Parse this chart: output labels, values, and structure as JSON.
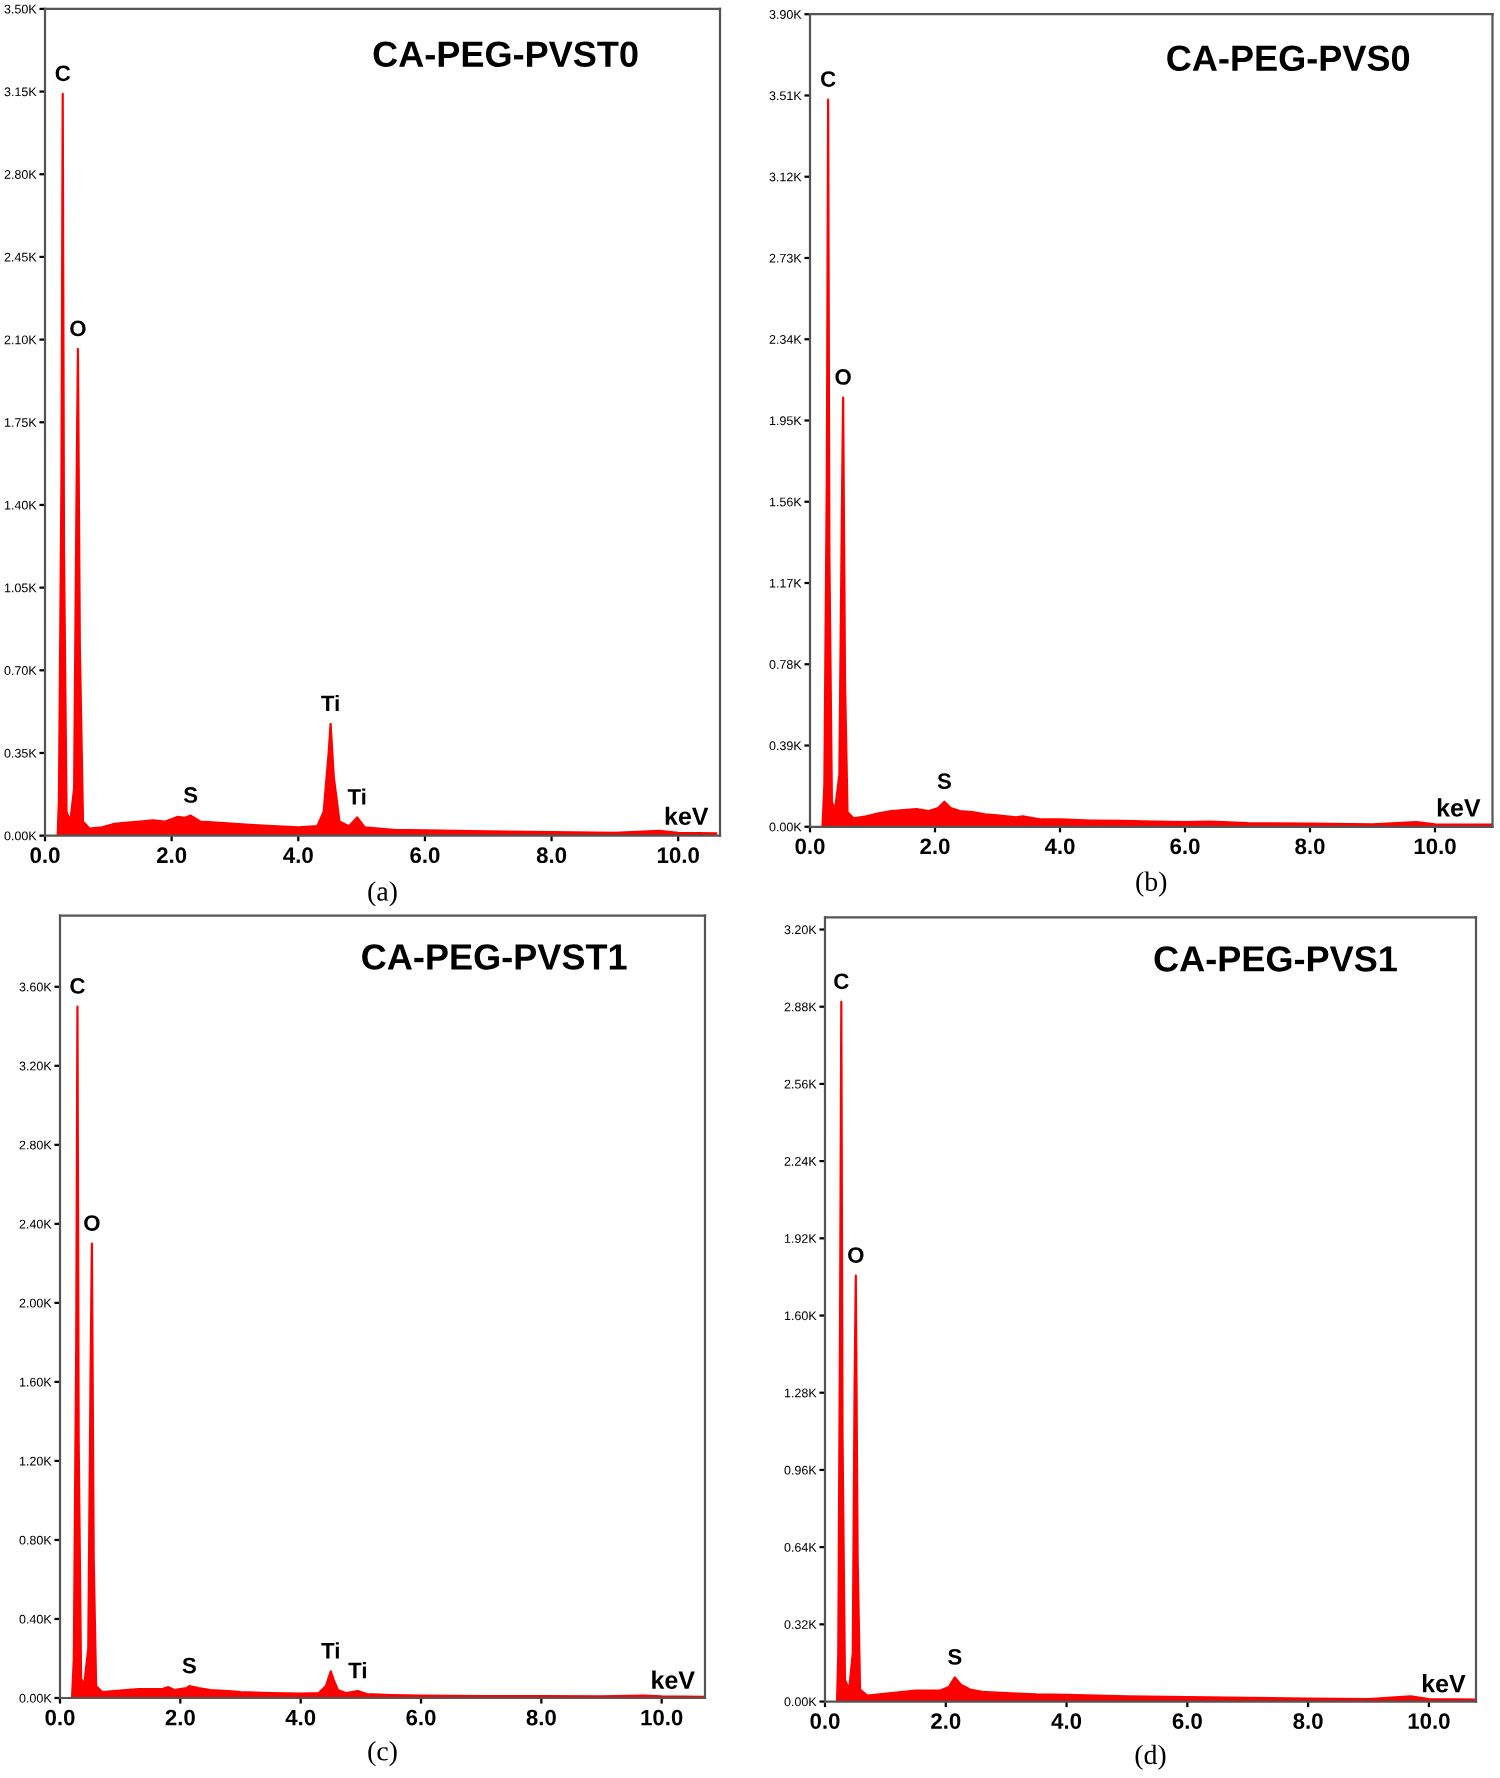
{
  "chart_data": [
    {
      "type": "area",
      "title": "CA-PEG-PVST0",
      "xlabel": "keV",
      "xlim": [
        0,
        10.66
      ],
      "ylim": [
        0,
        3500
      ],
      "xticks": [
        {
          "value": 0,
          "label": "0.0"
        },
        {
          "value": 2,
          "label": "2.0"
        },
        {
          "value": 4,
          "label": "4.0"
        },
        {
          "value": 6,
          "label": "6.0"
        },
        {
          "value": 8,
          "label": "8.0"
        },
        {
          "value": 10,
          "label": "10.0"
        }
      ],
      "yticks": [
        {
          "value": 0,
          "label": "0.00K"
        },
        {
          "value": 350,
          "label": "0.35K"
        },
        {
          "value": 700,
          "label": "0.70K"
        },
        {
          "value": 1050,
          "label": "1.05K"
        },
        {
          "value": 1400,
          "label": "1.40K"
        },
        {
          "value": 1750,
          "label": "1.75K"
        },
        {
          "value": 2100,
          "label": "2.10K"
        },
        {
          "value": 2450,
          "label": "2.45K"
        },
        {
          "value": 2800,
          "label": "2.80K"
        },
        {
          "value": 3150,
          "label": "3.15K"
        },
        {
          "value": 3500,
          "label": "3.50K"
        }
      ],
      "series": [
        {
          "color": "#ff0000",
          "x": [
            0.2,
            0.22,
            0.26,
            0.28,
            0.3,
            0.34,
            0.4,
            0.46,
            0.5,
            0.52,
            0.55,
            0.6,
            0.7,
            0.9,
            1.1,
            1.3,
            1.5,
            1.7,
            1.9,
            2.1,
            2.2,
            2.3,
            2.45,
            2.7,
            3.0,
            3.3,
            3.6,
            4.0,
            4.3,
            4.4,
            4.48,
            4.51,
            4.56,
            4.65,
            4.8,
            4.93,
            5.05,
            5.5,
            6.0,
            6.5,
            7.0,
            8.0,
            9.0,
            9.7,
            10.0,
            10.6
          ],
          "values": [
            0,
            150,
            1500,
            3140,
            1200,
            100,
            60,
            200,
            1500,
            2060,
            800,
            60,
            30,
            35,
            50,
            55,
            60,
            65,
            60,
            80,
            75,
            85,
            60,
            55,
            50,
            45,
            40,
            35,
            40,
            100,
            350,
            473,
            250,
            60,
            40,
            77,
            35,
            25,
            22,
            20,
            18,
            15,
            12,
            20,
            12,
            10
          ]
        }
      ],
      "annotations": [
        {
          "text": "C",
          "x": 0.28,
          "y": 3140
        },
        {
          "text": "O",
          "x": 0.52,
          "y": 2060
        },
        {
          "text": "S",
          "x": 2.3,
          "y": 85
        },
        {
          "text": "Ti",
          "x": 4.51,
          "y": 473
        },
        {
          "text": "Ti",
          "x": 4.93,
          "y": 77
        },
        "(a)"
      ]
    },
    {
      "type": "area",
      "title": "CA-PEG-PVS0",
      "xlabel": "keV",
      "xlim": [
        0,
        10.92
      ],
      "ylim": [
        0,
        3900
      ],
      "xticks": [
        {
          "value": 0,
          "label": "0.0"
        },
        {
          "value": 2,
          "label": "2.0"
        },
        {
          "value": 4,
          "label": "4.0"
        },
        {
          "value": 6,
          "label": "6.0"
        },
        {
          "value": 8,
          "label": "8.0"
        },
        {
          "value": 10,
          "label": "10.0"
        }
      ],
      "yticks": [
        {
          "value": 0,
          "label": "0.00K"
        },
        {
          "value": 390,
          "label": "0.39K"
        },
        {
          "value": 780,
          "label": "0.78K"
        },
        {
          "value": 1170,
          "label": "1.17K"
        },
        {
          "value": 1560,
          "label": "1.56K"
        },
        {
          "value": 1950,
          "label": "1.95K"
        },
        {
          "value": 2340,
          "label": "2.34K"
        },
        {
          "value": 2730,
          "label": "2.73K"
        },
        {
          "value": 3120,
          "label": "3.12K"
        },
        {
          "value": 3510,
          "label": "3.51K"
        },
        {
          "value": 3900,
          "label": "3.90K"
        }
      ],
      "series": [
        {
          "color": "#ff0000",
          "x": [
            0.2,
            0.23,
            0.27,
            0.29,
            0.31,
            0.35,
            0.4,
            0.47,
            0.51,
            0.53,
            0.56,
            0.6,
            0.7,
            0.9,
            1.1,
            1.3,
            1.5,
            1.7,
            1.9,
            2.05,
            2.15,
            2.25,
            2.4,
            2.6,
            2.8,
            3.0,
            3.3,
            3.4,
            3.7,
            4.0,
            4.5,
            5.0,
            5.5,
            6.0,
            6.4,
            7.0,
            8.0,
            9.0,
            9.7,
            10.0,
            10.9
          ],
          "values": [
            0,
            200,
            1700,
            3490,
            1300,
            120,
            80,
            250,
            1500,
            2060,
            700,
            70,
            40,
            50,
            65,
            75,
            80,
            85,
            75,
            90,
            120,
            90,
            75,
            70,
            60,
            55,
            45,
            50,
            35,
            35,
            30,
            28,
            25,
            22,
            25,
            18,
            15,
            12,
            22,
            12,
            10
          ]
        }
      ],
      "annotations": [
        {
          "text": "C",
          "x": 0.29,
          "y": 3490
        },
        {
          "text": "O",
          "x": 0.53,
          "y": 2060
        },
        {
          "text": "S",
          "x": 2.15,
          "y": 120
        },
        "(b)"
      ]
    },
    {
      "type": "area",
      "title": "CA-PEG-PVST1",
      "xlabel": "keV",
      "xlim": [
        0,
        10.72
      ],
      "ylim": [
        0,
        3960
      ],
      "xticks": [
        {
          "value": 0,
          "label": "0.0"
        },
        {
          "value": 2,
          "label": "2.0"
        },
        {
          "value": 4,
          "label": "4.0"
        },
        {
          "value": 6,
          "label": "6.0"
        },
        {
          "value": 8,
          "label": "8.0"
        },
        {
          "value": 10,
          "label": "10.0"
        }
      ],
      "yticks": [
        {
          "value": 0,
          "label": "0.00K"
        },
        {
          "value": 400,
          "label": "0.40K"
        },
        {
          "value": 800,
          "label": "0.80K"
        },
        {
          "value": 1200,
          "label": "1.20K"
        },
        {
          "value": 1600,
          "label": "1.60K"
        },
        {
          "value": 2000,
          "label": "2.00K"
        },
        {
          "value": 2400,
          "label": "2.40K"
        },
        {
          "value": 2800,
          "label": "2.80K"
        },
        {
          "value": 3200,
          "label": "3.20K"
        },
        {
          "value": 3600,
          "label": "3.60K"
        }
      ],
      "series": [
        {
          "color": "#ff0000",
          "x": [
            0.2,
            0.23,
            0.27,
            0.29,
            0.31,
            0.35,
            0.4,
            0.47,
            0.51,
            0.53,
            0.56,
            0.6,
            0.7,
            0.9,
            1.1,
            1.3,
            1.5,
            1.7,
            1.8,
            1.9,
            2.1,
            2.15,
            2.3,
            2.5,
            2.8,
            3.0,
            3.5,
            4.0,
            4.3,
            4.42,
            4.5,
            4.55,
            4.62,
            4.75,
            4.95,
            5.1,
            5.5,
            6.0,
            7.0,
            8.0,
            9.0,
            9.7,
            10.0,
            10.7
          ],
          "values": [
            0,
            200,
            1800,
            3500,
            1300,
            100,
            60,
            250,
            1700,
            2300,
            700,
            60,
            30,
            35,
            40,
            45,
            45,
            45,
            55,
            40,
            50,
            60,
            50,
            40,
            35,
            30,
            25,
            22,
            25,
            60,
            135,
            90,
            40,
            25,
            35,
            20,
            15,
            12,
            10,
            10,
            8,
            12,
            8,
            6
          ]
        }
      ],
      "annotations": [
        {
          "text": "C",
          "x": 0.29,
          "y": 3500
        },
        {
          "text": "O",
          "x": 0.53,
          "y": 2300
        },
        {
          "text": "S",
          "x": 2.15,
          "y": 60
        },
        {
          "text": "Ti",
          "x": 4.5,
          "y": 135
        },
        {
          "text": "Ti",
          "x": 4.95,
          "y": 35
        },
        "(c)"
      ]
    },
    {
      "type": "area",
      "title": "CA-PEG-PVS1",
      "xlabel": "keV",
      "xlim": [
        0,
        10.78
      ],
      "ylim": [
        0,
        3250
      ],
      "xticks": [
        {
          "value": 0,
          "label": "0.0"
        },
        {
          "value": 2,
          "label": "2.0"
        },
        {
          "value": 4,
          "label": "4.0"
        },
        {
          "value": 6,
          "label": "6.0"
        },
        {
          "value": 8,
          "label": "8.0"
        },
        {
          "value": 10,
          "label": "10.0"
        }
      ],
      "yticks": [
        {
          "value": 0,
          "label": "0.00K"
        },
        {
          "value": 320,
          "label": "0.32K"
        },
        {
          "value": 640,
          "label": "0.64K"
        },
        {
          "value": 960,
          "label": "0.96K"
        },
        {
          "value": 1280,
          "label": "1.28K"
        },
        {
          "value": 1600,
          "label": "1.60K"
        },
        {
          "value": 1920,
          "label": "1.92K"
        },
        {
          "value": 2240,
          "label": "2.24K"
        },
        {
          "value": 2560,
          "label": "2.56K"
        },
        {
          "value": 2880,
          "label": "2.88K"
        },
        {
          "value": 3200,
          "label": "3.20K"
        }
      ],
      "series": [
        {
          "color": "#ff0000",
          "x": [
            0.2,
            0.22,
            0.25,
            0.27,
            0.29,
            0.33,
            0.4,
            0.46,
            0.49,
            0.51,
            0.54,
            0.58,
            0.7,
            0.9,
            1.1,
            1.3,
            1.5,
            1.7,
            1.9,
            2.05,
            2.15,
            2.25,
            2.4,
            2.6,
            3.0,
            3.5,
            4.0,
            4.5,
            5.0,
            6.0,
            7.0,
            8.0,
            9.0,
            9.7,
            10.0,
            10.75
          ],
          "values": [
            0,
            200,
            1600,
            2900,
            1100,
            90,
            50,
            200,
            1300,
            1765,
            600,
            50,
            25,
            30,
            35,
            40,
            45,
            45,
            45,
            60,
            100,
            70,
            50,
            40,
            35,
            30,
            28,
            25,
            22,
            18,
            15,
            12,
            10,
            22,
            10,
            8
          ]
        }
      ],
      "annotations": [
        {
          "text": "C",
          "x": 0.27,
          "y": 2900
        },
        {
          "text": "O",
          "x": 0.51,
          "y": 1765
        },
        {
          "text": "S",
          "x": 2.15,
          "y": 100
        },
        "(d)"
      ]
    }
  ]
}
